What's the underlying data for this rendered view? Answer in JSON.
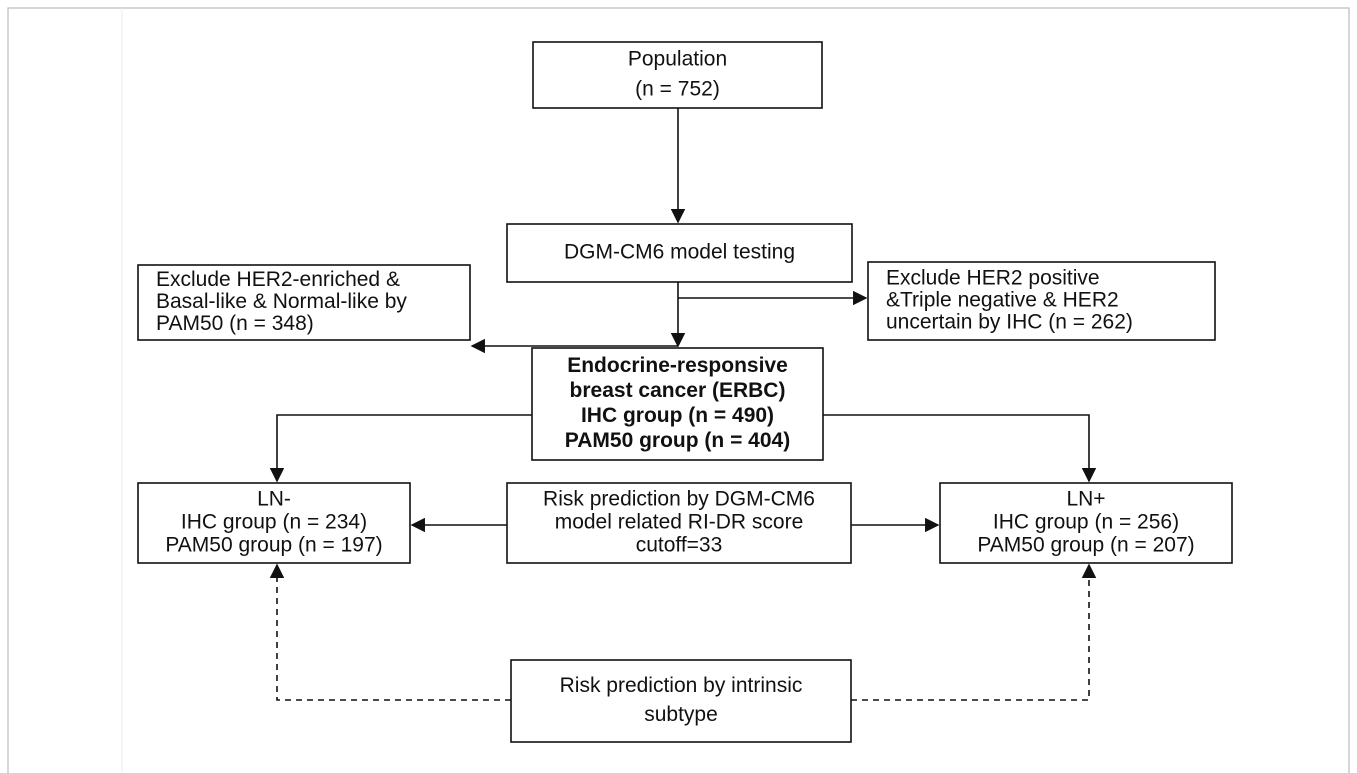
{
  "nodes": [
    {
      "lines": [
        "Population",
        "(n = 752)"
      ]
    },
    {
      "lines": [
        "DGM-CM6 model testing"
      ]
    },
    {
      "lines": [
        "Exclude HER2-enriched &",
        "Basal-like & Normal-like by",
        "PAM50 (n = 348)"
      ]
    },
    {
      "lines": [
        "Exclude HER2 positive",
        "&Triple negative & HER2",
        "uncertain by IHC (n = 262)"
      ]
    },
    {
      "lines": [
        "Endocrine-responsive",
        "breast cancer (ERBC)",
        "IHC group (n = 490)",
        "PAM50 group (n = 404)"
      ]
    },
    {
      "lines": [
        "LN-",
        "IHC group (n = 234)",
        "PAM50 group (n = 197)"
      ]
    },
    {
      "lines": [
        "Risk prediction by DGM-CM6",
        "model related RI-DR score",
        "cutoff=33"
      ]
    },
    {
      "lines": [
        "LN+",
        "IHC group (n = 256)",
        "PAM50 group (n = 207)"
      ]
    },
    {
      "lines": [
        "Risk prediction by intrinsic",
        "subtype"
      ]
    }
  ]
}
